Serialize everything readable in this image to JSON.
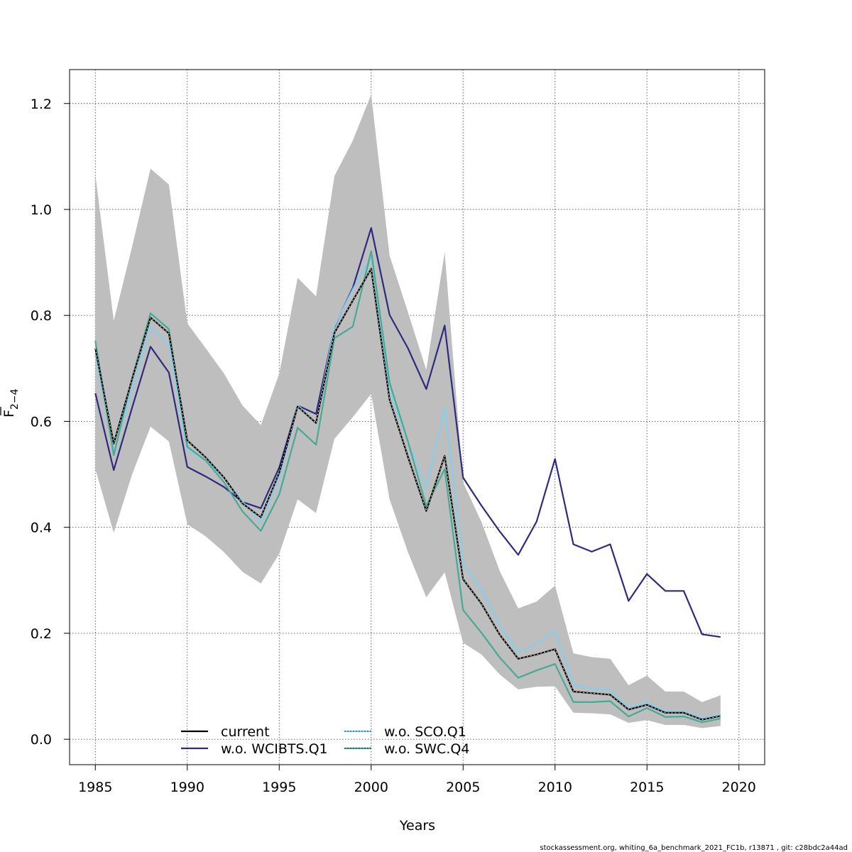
{
  "chart_data": {
    "type": "line",
    "xlabel": "Years",
    "ylabel_main": "F",
    "ylabel_sub": "2−4",
    "xlim": [
      1983.6,
      2021.4
    ],
    "ylim": [
      -0.048,
      1.264
    ],
    "xticks": [
      1985,
      1990,
      1995,
      2000,
      2005,
      2010,
      2015,
      2020
    ],
    "yticks": [
      0.0,
      0.2,
      0.4,
      0.6,
      0.8,
      1.0,
      1.2
    ],
    "ytick_labels": [
      "0.0",
      "0.2",
      "0.4",
      "0.6",
      "0.8",
      "1.0",
      "1.2"
    ],
    "grid": true,
    "legend_position": "bottom-center",
    "years": [
      1985,
      1986,
      1987,
      1988,
      1989,
      1990,
      1991,
      1992,
      1993,
      1994,
      1995,
      1996,
      1997,
      1998,
      1999,
      2000,
      2001,
      2002,
      2003,
      2004,
      2005,
      2006,
      2007,
      2008,
      2009,
      2010,
      2011,
      2012,
      2013,
      2014,
      2015,
      2016,
      2017,
      2018,
      2019
    ],
    "band": {
      "color": "#bebebe",
      "upper": [
        1.065,
        0.79,
        0.93,
        1.077,
        1.047,
        0.785,
        0.738,
        0.69,
        0.63,
        0.593,
        0.69,
        0.871,
        0.836,
        1.063,
        1.13,
        1.217,
        0.913,
        0.806,
        0.697,
        0.919,
        0.485,
        0.41,
        0.317,
        0.247,
        0.26,
        0.29,
        0.162,
        0.155,
        0.152,
        0.102,
        0.12,
        0.09,
        0.09,
        0.07,
        0.083
      ],
      "lower": [
        0.51,
        0.39,
        0.5,
        0.59,
        0.562,
        0.406,
        0.383,
        0.353,
        0.316,
        0.294,
        0.35,
        0.453,
        0.427,
        0.567,
        0.608,
        0.652,
        0.453,
        0.353,
        0.268,
        0.315,
        0.182,
        0.16,
        0.122,
        0.094,
        0.099,
        0.1,
        0.05,
        0.049,
        0.047,
        0.031,
        0.036,
        0.027,
        0.027,
        0.021,
        0.025
      ]
    },
    "series": [
      {
        "name": "current",
        "color": "#000000",
        "dash": "solid",
        "overlay_color": "",
        "values": [
          0.738,
          0.558,
          0.68,
          0.796,
          0.766,
          0.564,
          0.532,
          0.494,
          0.445,
          0.419,
          0.503,
          0.628,
          0.597,
          0.767,
          0.828,
          0.888,
          0.641,
          0.533,
          0.431,
          0.535,
          0.302,
          0.256,
          0.197,
          0.152,
          0.16,
          0.17,
          0.09,
          0.087,
          0.084,
          0.056,
          0.065,
          0.05,
          0.05,
          0.037,
          0.044
        ]
      },
      {
        "name": "w.o. WCIBTS.Q1",
        "color": "#2e2a7e",
        "dash": "solid",
        "overlay_color": "",
        "values": [
          0.653,
          0.508,
          0.626,
          0.741,
          0.692,
          0.514,
          0.496,
          0.476,
          0.448,
          0.436,
          0.513,
          0.63,
          0.614,
          0.778,
          0.852,
          0.965,
          0.801,
          0.738,
          0.661,
          0.781,
          0.494,
          0.441,
          0.392,
          0.348,
          0.411,
          0.529,
          0.368,
          0.354,
          0.368,
          0.261,
          0.312,
          0.28,
          0.28,
          0.198,
          0.193
        ]
      },
      {
        "name": "w.o. SCO.Q1",
        "color": "#87ceeb",
        "dash": "solid",
        "overlay_color": "#1560bd",
        "values": [
          0.725,
          0.542,
          0.66,
          0.778,
          0.745,
          0.548,
          0.526,
          0.494,
          0.449,
          0.409,
          0.492,
          0.631,
          0.596,
          0.78,
          0.849,
          0.911,
          0.658,
          0.562,
          0.474,
          0.626,
          0.332,
          0.282,
          0.215,
          0.164,
          0.18,
          0.205,
          0.103,
          0.095,
          0.093,
          0.06,
          0.069,
          0.053,
          0.052,
          0.04,
          0.047
        ]
      },
      {
        "name": "w.o. SWC.Q4",
        "color": "#46aa96",
        "dash": "solid",
        "overlay_color": "#0a4d3c",
        "values": [
          0.752,
          0.536,
          0.682,
          0.804,
          0.774,
          0.552,
          0.526,
          0.485,
          0.43,
          0.393,
          0.462,
          0.588,
          0.556,
          0.757,
          0.779,
          0.921,
          0.673,
          0.562,
          0.44,
          0.51,
          0.244,
          0.201,
          0.154,
          0.116,
          0.13,
          0.142,
          0.07,
          0.07,
          0.072,
          0.043,
          0.059,
          0.042,
          0.043,
          0.032,
          0.039
        ]
      }
    ],
    "footer": "stockassessment.org, whiting_6a_benchmark_2021_FC1b, r13871 , git: c28bdc2a44ad"
  }
}
